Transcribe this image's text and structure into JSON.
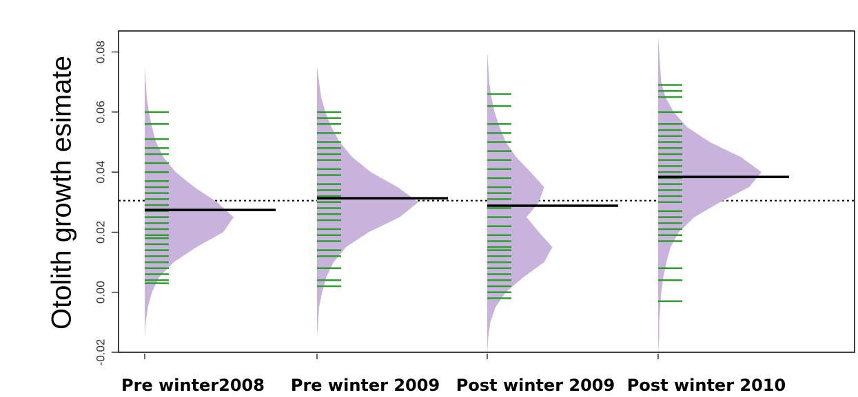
{
  "chart_data": {
    "type": "beanplot",
    "y_label": "Otolith growth esimate",
    "categories": [
      "Pre winter2008",
      "Pre winter 2009",
      "Post winter 2009",
      "Post winter 2010"
    ],
    "ylim": [
      -0.02,
      0.087
    ],
    "yticks": [
      -0.02,
      {
        "value": 0,
        "label": "0.00"
      },
      0.02,
      0.04,
      0.06,
      0.08
    ],
    "overall_mean": 0.0305,
    "density_color": "#c8b3dc",
    "bean_line_color": "#2e9e2e",
    "mean_color": "#000000",
    "density_y": [
      -0.02,
      -0.015,
      -0.01,
      -0.005,
      0,
      0.005,
      0.01,
      0.015,
      0.02,
      0.025,
      0.03,
      0.035,
      0.04,
      0.045,
      0.05,
      0.055,
      0.06,
      0.065,
      0.07,
      0.075,
      0.08,
      0.085
    ],
    "beans": [
      {
        "mean": 0.0274,
        "density": [
          0,
          0,
          1,
          3,
          7,
          14,
          28,
          50,
          76,
          86,
          70,
          48,
          30,
          18,
          11,
          7,
          4,
          2,
          1,
          0,
          0,
          0
        ],
        "values": [
          0.003,
          0.004,
          0.006,
          0.008,
          0.01,
          0.012,
          0.014,
          0.016,
          0.018,
          0.019,
          0.021,
          0.023,
          0.025,
          0.027,
          0.029,
          0.031,
          0.033,
          0.035,
          0.037,
          0.04,
          0.043,
          0.046,
          0.048,
          0.051,
          0.056,
          0.06
        ]
      },
      {
        "mean": 0.0313,
        "density": [
          0,
          0,
          1,
          2,
          5,
          9,
          16,
          28,
          50,
          80,
          98,
          78,
          52,
          34,
          22,
          14,
          8,
          4,
          2,
          0,
          0,
          0
        ],
        "values": [
          0.002,
          0.004,
          0.008,
          0.012,
          0.014,
          0.017,
          0.019,
          0.021,
          0.024,
          0.026,
          0.028,
          0.03,
          0.032,
          0.034,
          0.036,
          0.039,
          0.041,
          0.044,
          0.046,
          0.048,
          0.05,
          0.053,
          0.056,
          0.058,
          0.06
        ]
      },
      {
        "mean": 0.0288,
        "density": [
          0,
          1,
          3,
          8,
          18,
          35,
          55,
          63,
          50,
          38,
          50,
          55,
          42,
          28,
          18,
          12,
          7,
          4,
          2,
          1,
          0,
          0
        ],
        "values": [
          -0.002,
          0,
          0.002,
          0.004,
          0.006,
          0.008,
          0.01,
          0.012,
          0.014,
          0.015,
          0.017,
          0.019,
          0.022,
          0.025,
          0.028,
          0.031,
          0.033,
          0.035,
          0.038,
          0.041,
          0.044,
          0.047,
          0.05,
          0.053,
          0.056,
          0.062,
          0.066
        ]
      },
      {
        "mean": 0.0384,
        "density": [
          0,
          1,
          1,
          2,
          3,
          5,
          8,
          12,
          20,
          35,
          60,
          88,
          100,
          80,
          50,
          28,
          15,
          7,
          3,
          2,
          1,
          0
        ],
        "values": [
          -0.003,
          0.004,
          0.008,
          0.017,
          0.019,
          0.021,
          0.023,
          0.025,
          0.027,
          0.03,
          0.032,
          0.034,
          0.036,
          0.038,
          0.04,
          0.042,
          0.044,
          0.046,
          0.048,
          0.05,
          0.052,
          0.054,
          0.056,
          0.06,
          0.065,
          0.067,
          0.069
        ]
      }
    ]
  }
}
